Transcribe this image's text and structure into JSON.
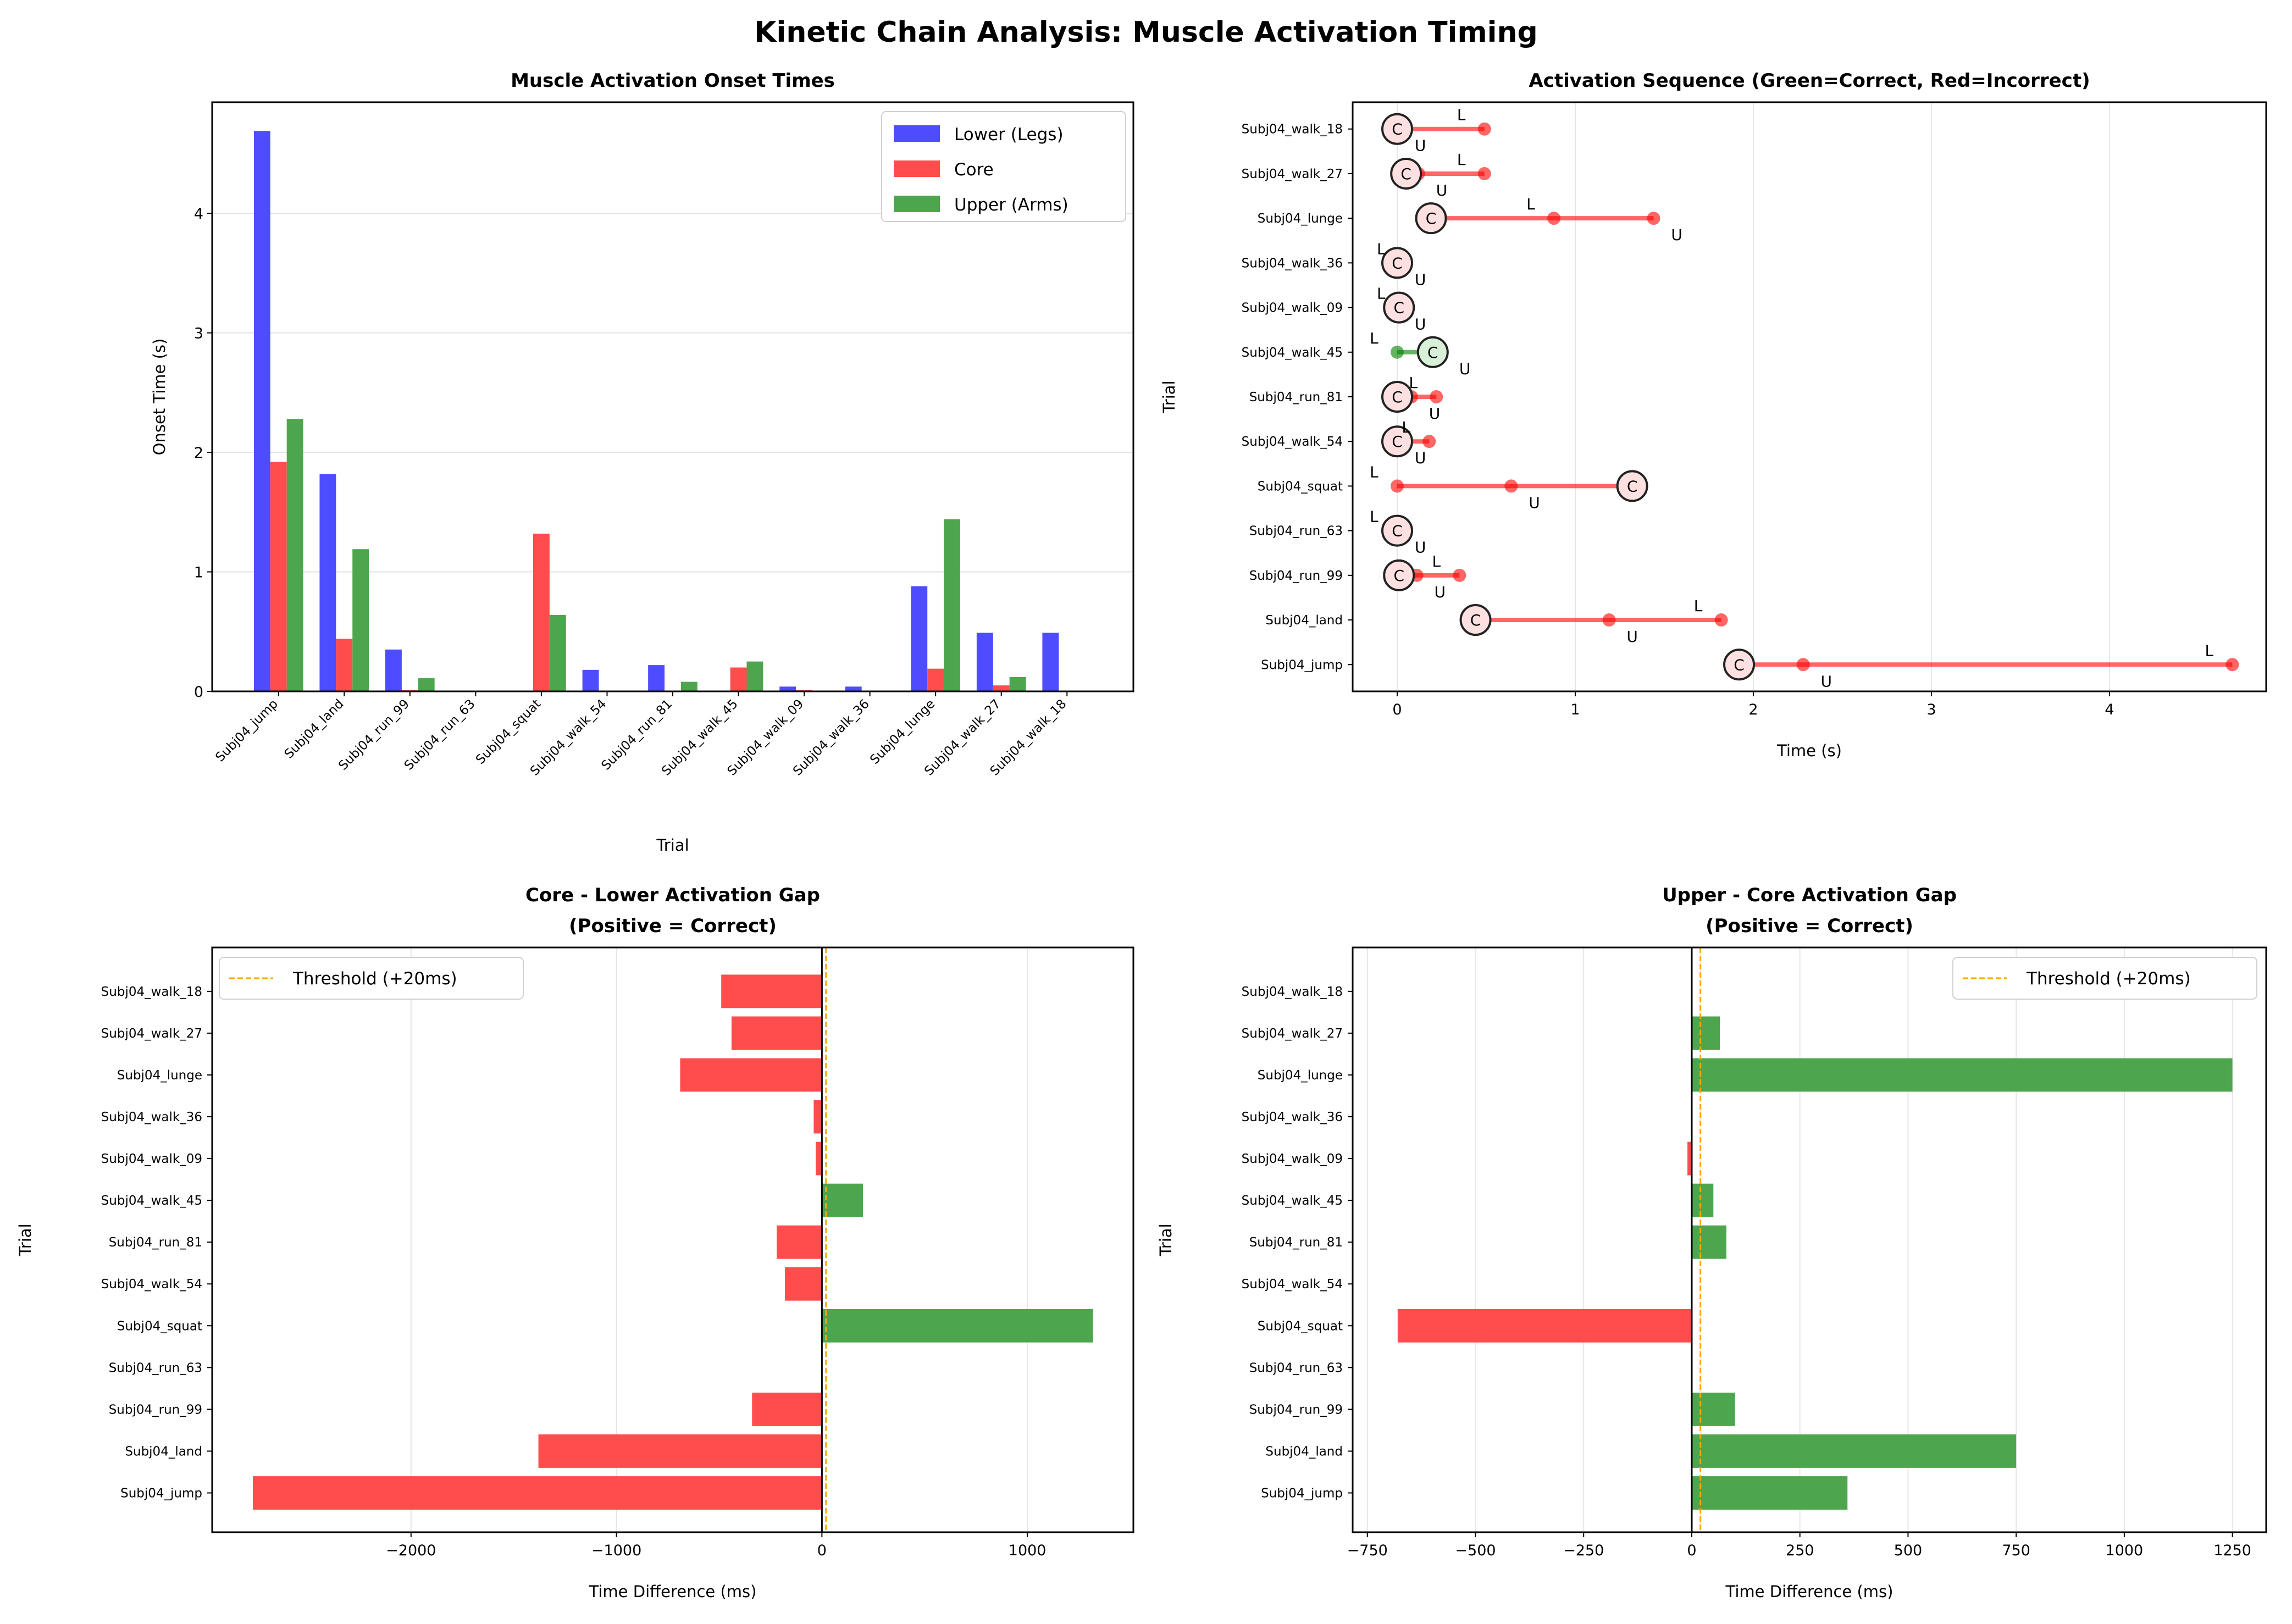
{
  "title": "Kinetic Chain Analysis: Muscle Activation Timing",
  "colors": {
    "lower": "#4d4dff",
    "core": "#ff4d4d",
    "upper": "#4da64d",
    "correct": "#008000",
    "incorrect": "#ff0000",
    "threshold": "#ffa500"
  },
  "chart_data": [
    {
      "type": "bar",
      "title": "Muscle Activation Onset Times",
      "xlabel": "Trial",
      "ylabel": "Onset Time (s)",
      "ylim": [
        0,
        4.93
      ],
      "yticks": [
        0,
        1,
        2,
        3,
        4
      ],
      "grid": "y",
      "legend": "top-right",
      "categories": [
        "Subj04_jump",
        "Subj04_land",
        "Subj04_run_99",
        "Subj04_run_63",
        "Subj04_squat",
        "Subj04_walk_54",
        "Subj04_run_81",
        "Subj04_walk_45",
        "Subj04_walk_09",
        "Subj04_walk_36",
        "Subj04_lunge",
        "Subj04_walk_27",
        "Subj04_walk_18"
      ],
      "series": [
        {
          "name": "Lower (Legs)",
          "values": [
            4.69,
            1.82,
            0.35,
            0,
            0,
            0.18,
            0.22,
            0,
            0.04,
            0.04,
            0.88,
            0.49,
            0.49
          ]
        },
        {
          "name": "Core",
          "values": [
            1.92,
            0.44,
            0.01,
            0,
            1.32,
            0,
            0,
            0.2,
            0.01,
            0,
            0.19,
            0.05,
            0
          ]
        },
        {
          "name": "Upper (Arms)",
          "values": [
            2.28,
            1.19,
            0.11,
            0,
            0.64,
            0,
            0.08,
            0.25,
            0,
            0,
            1.44,
            0.12,
            0
          ]
        }
      ]
    },
    {
      "type": "scatter",
      "title": "Activation Sequence (Green=Correct, Red=Incorrect)",
      "xlabel": "Time (s)",
      "ylabel": "Trial",
      "xlim": [
        -0.25,
        4.88
      ],
      "xticks": [
        0,
        1,
        2,
        3,
        4
      ],
      "grid": "x",
      "marker_labels": {
        "lower": "L",
        "core": "C",
        "upper": "U"
      },
      "categories": [
        "Subj04_jump",
        "Subj04_land",
        "Subj04_run_99",
        "Subj04_run_63",
        "Subj04_squat",
        "Subj04_walk_54",
        "Subj04_run_81",
        "Subj04_walk_45",
        "Subj04_walk_09",
        "Subj04_walk_36",
        "Subj04_lunge",
        "Subj04_walk_27",
        "Subj04_walk_18"
      ],
      "correct": [
        false,
        false,
        false,
        false,
        false,
        false,
        false,
        true,
        false,
        false,
        false,
        false,
        false
      ]
    },
    {
      "type": "bar",
      "orientation": "horizontal",
      "title": "Core - Lower Activation Gap",
      "subtitle": "(Positive = Correct)",
      "xlabel": "Time Difference (ms)",
      "ylabel": "Trial",
      "xlim": [
        -2968,
        1516
      ],
      "xticks": [
        -2000,
        -1000,
        0,
        1000
      ],
      "xtick_labels": [
        "−2000",
        "−1000",
        "0",
        "1000"
      ],
      "threshold": 20,
      "threshold_label": "Threshold (+20ms)",
      "legend": "top-left",
      "grid": "x",
      "categories": [
        "Subj04_jump",
        "Subj04_land",
        "Subj04_run_99",
        "Subj04_run_63",
        "Subj04_squat",
        "Subj04_walk_54",
        "Subj04_run_81",
        "Subj04_walk_45",
        "Subj04_walk_09",
        "Subj04_walk_36",
        "Subj04_lunge",
        "Subj04_walk_27",
        "Subj04_walk_18"
      ],
      "values": [
        -2770,
        -1380,
        -340,
        0,
        1320,
        -180,
        -220,
        200,
        -30,
        -40,
        -690,
        -440,
        -490
      ]
    },
    {
      "type": "bar",
      "orientation": "horizontal",
      "title": "Upper - Core Activation Gap",
      "subtitle": "(Positive = Correct)",
      "xlabel": "Time Difference (ms)",
      "ylabel": "Trial",
      "xlim": [
        -784,
        1328
      ],
      "xticks": [
        -750,
        -500,
        -250,
        0,
        250,
        500,
        750,
        1000,
        1250
      ],
      "xtick_labels": [
        "−750",
        "−500",
        "−250",
        "0",
        "250",
        "500",
        "750",
        "1000",
        "1250"
      ],
      "threshold": 20,
      "threshold_label": "Threshold (+20ms)",
      "legend": "top-right",
      "grid": "x",
      "categories": [
        "Subj04_jump",
        "Subj04_land",
        "Subj04_run_99",
        "Subj04_run_63",
        "Subj04_squat",
        "Subj04_walk_54",
        "Subj04_run_81",
        "Subj04_walk_45",
        "Subj04_walk_09",
        "Subj04_walk_36",
        "Subj04_lunge",
        "Subj04_walk_27",
        "Subj04_walk_18"
      ],
      "values": [
        360,
        750,
        100,
        0,
        -680,
        0,
        80,
        50,
        -10,
        0,
        1250,
        65,
        0
      ]
    }
  ]
}
